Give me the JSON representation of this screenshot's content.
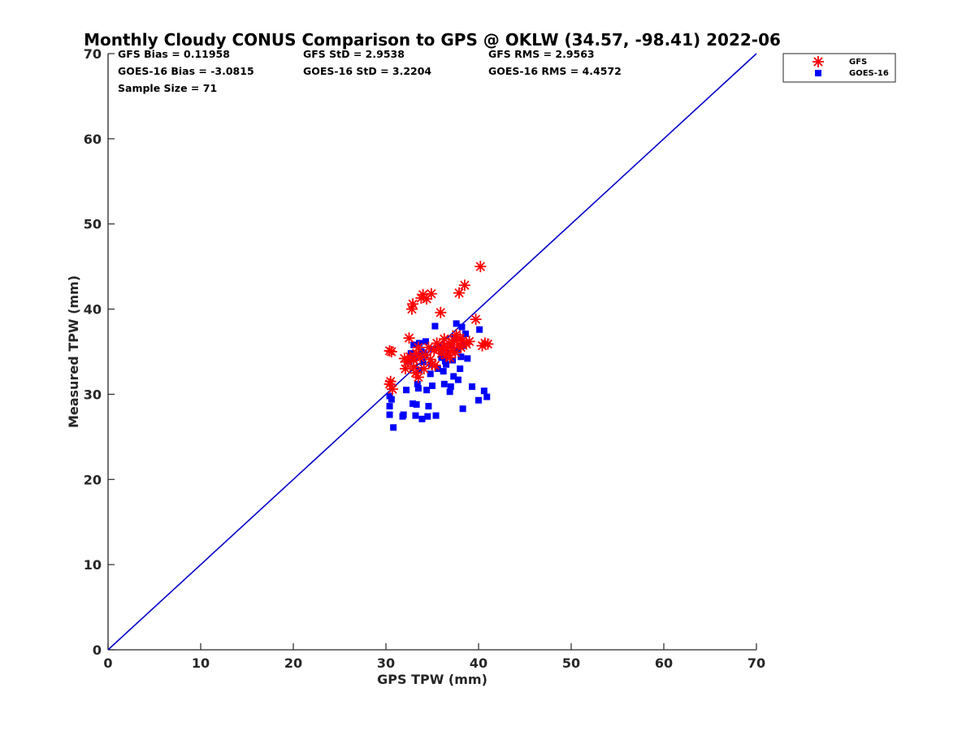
{
  "chart_data": {
    "type": "scatter",
    "title": "Monthly Cloudy CONUS Comparison to GPS @ OKLW (34.57, -98.41) 2022-06",
    "xlabel": "GPS TPW (mm)",
    "ylabel": "Measured TPW (mm)",
    "xlim": [
      0,
      70
    ],
    "ylim": [
      0,
      70
    ],
    "xticks": [
      0,
      10,
      20,
      30,
      40,
      50,
      60,
      70
    ],
    "yticks": [
      0,
      10,
      20,
      30,
      40,
      50,
      60,
      70
    ],
    "grid": false,
    "legend_position": "top-right-outside",
    "annotations": {
      "gfs_bias": "GFS Bias = 0.11958",
      "goes_bias": "GOES-16 Bias = -3.0815",
      "sample_size": "Sample Size = 71",
      "gfs_std": "GFS StD = 2.9538",
      "goes_std": "GOES-16 StD = 3.2204",
      "gfs_rms": "GFS RMS = 2.9563",
      "goes_rms": "GOES-16 RMS = 4.4572"
    },
    "reference_line": {
      "x": [
        0,
        70
      ],
      "y": [
        0,
        70
      ],
      "color": "#0000cc"
    },
    "series": [
      {
        "name": "GFS",
        "marker": "asterisk",
        "color": "#ff0000",
        "points": [
          [
            30.4,
            35.1
          ],
          [
            30.6,
            35.0
          ],
          [
            30.4,
            31.2
          ],
          [
            30.7,
            30.6
          ],
          [
            30.5,
            31.5
          ],
          [
            32.0,
            34.2
          ],
          [
            32.1,
            33.0
          ],
          [
            32.3,
            33.8
          ],
          [
            32.5,
            36.6
          ],
          [
            32.6,
            34.4
          ],
          [
            32.8,
            40.0
          ],
          [
            32.9,
            40.6
          ],
          [
            33.0,
            33.2
          ],
          [
            33.0,
            34.0
          ],
          [
            33.2,
            32.5
          ],
          [
            33.3,
            34.8
          ],
          [
            33.5,
            32.0
          ],
          [
            33.5,
            35.5
          ],
          [
            33.7,
            34.3
          ],
          [
            33.8,
            41.3
          ],
          [
            34.0,
            41.7
          ],
          [
            34.1,
            33.0
          ],
          [
            34.3,
            34.6
          ],
          [
            34.4,
            41.2
          ],
          [
            34.6,
            35.5
          ],
          [
            34.8,
            34.1
          ],
          [
            34.9,
            41.8
          ],
          [
            35.0,
            33.5
          ],
          [
            35.2,
            35.2
          ],
          [
            35.3,
            33.4
          ],
          [
            35.5,
            36.0
          ],
          [
            35.7,
            35.3
          ],
          [
            35.9,
            39.6
          ],
          [
            36.0,
            34.8
          ],
          [
            36.2,
            35.6
          ],
          [
            36.3,
            36.5
          ],
          [
            36.5,
            34.6
          ],
          [
            36.6,
            35.4
          ],
          [
            36.8,
            36.0
          ],
          [
            36.9,
            34.3
          ],
          [
            37.0,
            35.0
          ],
          [
            37.2,
            35.8
          ],
          [
            37.3,
            36.4
          ],
          [
            37.5,
            34.9
          ],
          [
            37.6,
            37.0
          ],
          [
            37.8,
            35.8
          ],
          [
            37.9,
            41.9
          ],
          [
            38.0,
            36.6
          ],
          [
            38.1,
            35.5
          ],
          [
            38.3,
            36.3
          ],
          [
            38.5,
            42.8
          ],
          [
            38.7,
            35.9
          ],
          [
            39.0,
            36.2
          ],
          [
            39.7,
            38.8
          ],
          [
            40.2,
            45.0
          ],
          [
            40.4,
            35.7
          ],
          [
            40.7,
            36.0
          ],
          [
            41.0,
            35.9
          ]
        ]
      },
      {
        "name": "GOES-16",
        "marker": "square",
        "color": "#0000ff",
        "points": [
          [
            30.4,
            29.8
          ],
          [
            30.4,
            28.6
          ],
          [
            30.4,
            27.6
          ],
          [
            30.6,
            29.4
          ],
          [
            30.8,
            26.1
          ],
          [
            31.8,
            27.4
          ],
          [
            31.9,
            27.6
          ],
          [
            32.2,
            30.5
          ],
          [
            32.5,
            33.9
          ],
          [
            32.7,
            34.8
          ],
          [
            32.9,
            28.9
          ],
          [
            33.0,
            35.8
          ],
          [
            33.1,
            34.2
          ],
          [
            33.2,
            27.5
          ],
          [
            33.3,
            28.8
          ],
          [
            33.4,
            31.2
          ],
          [
            33.5,
            30.7
          ],
          [
            33.6,
            32.8
          ],
          [
            33.8,
            35.0
          ],
          [
            33.9,
            27.1
          ],
          [
            34.0,
            33.8
          ],
          [
            34.2,
            34.6
          ],
          [
            34.3,
            36.2
          ],
          [
            34.4,
            30.5
          ],
          [
            34.5,
            27.4
          ],
          [
            34.6,
            28.6
          ],
          [
            34.8,
            32.4
          ],
          [
            34.9,
            33.5
          ],
          [
            35.0,
            31.0
          ],
          [
            35.1,
            35.3
          ],
          [
            35.3,
            38.0
          ],
          [
            35.4,
            27.5
          ],
          [
            35.6,
            33.0
          ],
          [
            35.8,
            35.5
          ],
          [
            36.0,
            34.3
          ],
          [
            36.2,
            32.7
          ],
          [
            36.3,
            31.2
          ],
          [
            36.5,
            33.5
          ],
          [
            36.7,
            34.8
          ],
          [
            36.9,
            30.3
          ],
          [
            37.0,
            30.9
          ],
          [
            37.1,
            35.7
          ],
          [
            37.3,
            32.1
          ],
          [
            37.4,
            36.6
          ],
          [
            37.6,
            38.3
          ],
          [
            37.7,
            35.2
          ],
          [
            37.8,
            31.7
          ],
          [
            38.0,
            33.0
          ],
          [
            38.1,
            34.4
          ],
          [
            38.3,
            28.3
          ],
          [
            38.4,
            35.7
          ],
          [
            38.6,
            37.1
          ],
          [
            38.8,
            34.2
          ],
          [
            39.3,
            30.9
          ],
          [
            40.0,
            29.3
          ],
          [
            40.1,
            37.6
          ],
          [
            40.6,
            30.4
          ],
          [
            40.9,
            29.7
          ],
          [
            33.6,
            36.0
          ],
          [
            34.1,
            34.9
          ],
          [
            36.4,
            33.9
          ],
          [
            37.2,
            34.0
          ],
          [
            38.2,
            37.9
          ]
        ]
      }
    ]
  }
}
